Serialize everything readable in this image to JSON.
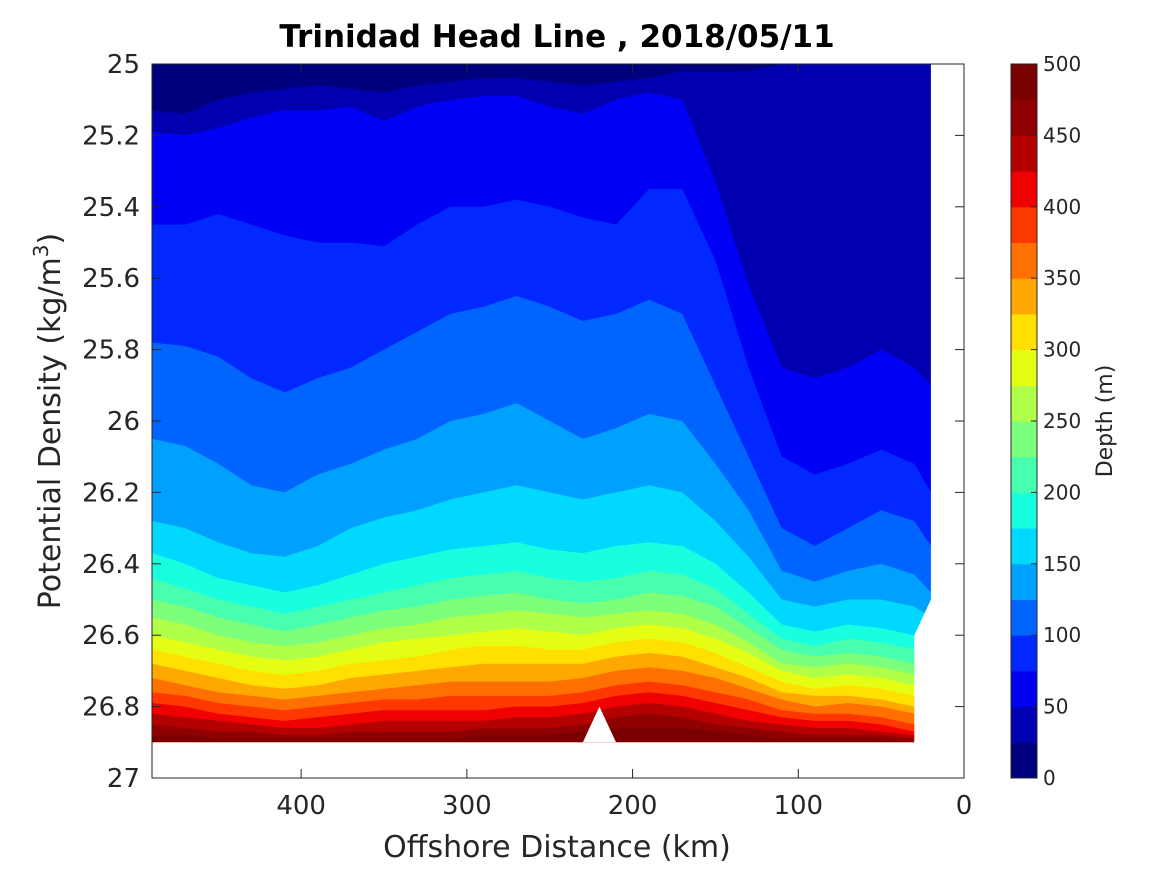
{
  "chart_data": {
    "type": "contourf",
    "title": "Trinidad Head Line , 2018/05/11",
    "xlabel": "Offshore Distance (km)",
    "ylabel_main": "Potential Density (kg/m",
    "ylabel_sup": "3",
    "ylabel_close": ")",
    "colorbar_label": "Depth (m)",
    "xlim": [
      490,
      0
    ],
    "ylim": [
      25,
      27
    ],
    "y_reversed": true,
    "x_reversed": true,
    "xticks": [
      400,
      300,
      200,
      100,
      0
    ],
    "xtick_labels": [
      "400",
      "300",
      "200",
      "100",
      "0"
    ],
    "yticks": [
      25,
      25.2,
      25.4,
      25.6,
      25.8,
      26,
      26.2,
      26.4,
      26.6,
      26.8,
      27
    ],
    "ytick_labels": [
      "25",
      "25.2",
      "25.4",
      "25.6",
      "25.8",
      "26",
      "26.2",
      "26.4",
      "26.6",
      "26.8",
      "27"
    ],
    "colorbar_range": [
      0,
      500
    ],
    "colorbar_ticks": [
      0,
      50,
      100,
      150,
      200,
      250,
      300,
      350,
      400,
      450,
      500
    ],
    "colorbar_tick_labels": [
      "0",
      "50",
      "100",
      "150",
      "200",
      "250",
      "300",
      "350",
      "400",
      "450",
      "500"
    ],
    "colormap": "jet",
    "contour_interval": 25,
    "colormap_colors": [
      "#00007f",
      "#0000b0",
      "#0000f5",
      "#0028ff",
      "#0064ff",
      "#00a0ff",
      "#00d8ff",
      "#18ffe0",
      "#48ffaf",
      "#7cff7a",
      "#b0ff48",
      "#e4ff14",
      "#ffe000",
      "#ffa800",
      "#ff7000",
      "#ff3800",
      "#f00000",
      "#b50000",
      "#8f0000",
      "#7a0000"
    ],
    "x_stations": [
      490,
      470,
      450,
      430,
      410,
      390,
      370,
      350,
      330,
      310,
      290,
      270,
      250,
      230,
      210,
      190,
      170,
      150,
      130,
      110,
      90,
      70,
      50,
      30,
      20
    ],
    "isopycnal_depth_contours": [
      {
        "depth": 25,
        "y": [
          25.13,
          25.14,
          25.1,
          25.08,
          25.07,
          25.06,
          25.07,
          25.08,
          25.06,
          25.05,
          25.04,
          25.04,
          25.05,
          25.06,
          25.05,
          25.04,
          25.02,
          25.02,
          25.02,
          25.0,
          25.0,
          25.0,
          25.0,
          25.0,
          25.0
        ]
      },
      {
        "depth": 50,
        "y": [
          25.19,
          25.2,
          25.18,
          25.15,
          25.13,
          25.13,
          25.12,
          25.16,
          25.12,
          25.1,
          25.09,
          25.09,
          25.12,
          25.14,
          25.1,
          25.08,
          25.1,
          25.33,
          25.62,
          25.85,
          25.88,
          25.85,
          25.8,
          25.85,
          25.9
        ]
      },
      {
        "depth": 75,
        "y": [
          25.45,
          25.45,
          25.42,
          25.45,
          25.48,
          25.5,
          25.5,
          25.51,
          25.45,
          25.4,
          25.4,
          25.38,
          25.4,
          25.43,
          25.45,
          25.35,
          25.35,
          25.55,
          25.85,
          26.1,
          26.15,
          26.12,
          26.08,
          26.12,
          26.2
        ]
      },
      {
        "depth": 100,
        "y": [
          25.78,
          25.79,
          25.82,
          25.88,
          25.92,
          25.88,
          25.85,
          25.8,
          25.75,
          25.7,
          25.68,
          25.65,
          25.68,
          25.72,
          25.7,
          25.66,
          25.7,
          25.9,
          26.1,
          26.3,
          26.35,
          26.3,
          26.25,
          26.28,
          26.35
        ]
      },
      {
        "depth": 125,
        "y": [
          26.05,
          26.07,
          26.12,
          26.18,
          26.2,
          26.15,
          26.12,
          26.08,
          26.05,
          26.0,
          25.98,
          25.95,
          26.0,
          26.05,
          26.02,
          25.98,
          26.0,
          26.12,
          26.25,
          26.42,
          26.45,
          26.42,
          26.4,
          26.43,
          26.48
        ]
      },
      {
        "depth": 150,
        "y": [
          26.28,
          26.3,
          26.34,
          26.37,
          26.38,
          26.35,
          26.3,
          26.27,
          26.25,
          26.22,
          26.2,
          26.18,
          26.2,
          26.22,
          26.2,
          26.18,
          26.2,
          26.28,
          26.38,
          26.5,
          26.52,
          26.5,
          26.5,
          26.52,
          26.55
        ]
      },
      {
        "depth": 175,
        "y": [
          26.37,
          26.4,
          26.44,
          26.46,
          26.48,
          26.46,
          26.43,
          26.4,
          26.38,
          26.36,
          26.35,
          26.34,
          26.36,
          26.37,
          26.35,
          26.34,
          26.35,
          26.4,
          26.48,
          26.57,
          26.59,
          26.57,
          26.58,
          26.6,
          26.62
        ]
      },
      {
        "depth": 200,
        "y": [
          26.44,
          26.47,
          26.5,
          26.52,
          26.54,
          26.52,
          26.5,
          26.48,
          26.46,
          26.44,
          26.43,
          26.42,
          26.44,
          26.45,
          26.44,
          26.42,
          26.43,
          26.47,
          26.54,
          26.61,
          26.63,
          26.61,
          26.62,
          26.64,
          26.66
        ]
      },
      {
        "depth": 225,
        "y": [
          26.5,
          26.52,
          26.55,
          26.57,
          26.59,
          26.57,
          26.55,
          26.53,
          26.52,
          26.5,
          26.49,
          26.48,
          26.5,
          26.51,
          26.5,
          26.48,
          26.49,
          26.52,
          26.58,
          26.64,
          26.66,
          26.65,
          26.66,
          26.68,
          26.7
        ]
      },
      {
        "depth": 250,
        "y": [
          26.55,
          26.57,
          26.6,
          26.62,
          26.63,
          26.62,
          26.6,
          26.58,
          26.57,
          26.55,
          26.54,
          26.53,
          26.54,
          26.55,
          26.54,
          26.53,
          26.54,
          26.57,
          26.62,
          26.68,
          26.69,
          26.68,
          26.69,
          26.71,
          26.73
        ]
      },
      {
        "depth": 275,
        "y": [
          26.6,
          26.62,
          26.64,
          26.66,
          26.67,
          26.66,
          26.64,
          26.62,
          26.61,
          26.6,
          26.59,
          26.58,
          26.59,
          26.6,
          26.58,
          26.57,
          26.58,
          26.61,
          26.65,
          26.7,
          26.72,
          26.71,
          26.72,
          26.74,
          26.76
        ]
      },
      {
        "depth": 300,
        "y": [
          26.64,
          26.66,
          26.68,
          26.7,
          26.71,
          26.7,
          26.68,
          26.67,
          26.66,
          26.64,
          26.63,
          26.63,
          26.64,
          26.64,
          26.62,
          26.61,
          26.62,
          26.65,
          26.69,
          26.73,
          26.75,
          26.74,
          26.75,
          26.77,
          26.79
        ]
      },
      {
        "depth": 325,
        "y": [
          26.68,
          26.7,
          26.72,
          26.74,
          26.75,
          26.74,
          26.72,
          26.71,
          26.7,
          26.69,
          26.68,
          26.68,
          26.68,
          26.68,
          26.66,
          26.65,
          26.66,
          26.69,
          26.72,
          26.76,
          26.77,
          26.77,
          26.78,
          26.8,
          26.82
        ]
      },
      {
        "depth": 350,
        "y": [
          26.72,
          26.74,
          26.76,
          26.77,
          26.78,
          26.77,
          26.76,
          26.75,
          26.74,
          26.73,
          26.73,
          26.73,
          26.73,
          26.72,
          26.7,
          26.69,
          26.7,
          26.72,
          26.75,
          26.78,
          26.8,
          26.79,
          26.8,
          26.82,
          26.84
        ]
      },
      {
        "depth": 375,
        "y": [
          26.76,
          26.77,
          26.79,
          26.8,
          26.81,
          26.8,
          26.79,
          26.78,
          26.78,
          26.77,
          26.77,
          26.77,
          26.77,
          26.76,
          26.74,
          26.73,
          26.74,
          26.76,
          26.78,
          26.81,
          26.82,
          26.82,
          26.83,
          26.85,
          26.86
        ]
      },
      {
        "depth": 400,
        "y": [
          26.79,
          26.8,
          26.82,
          26.83,
          26.84,
          26.83,
          26.82,
          26.81,
          26.81,
          26.81,
          26.81,
          26.8,
          26.8,
          26.79,
          26.77,
          26.76,
          26.77,
          26.79,
          26.81,
          26.83,
          26.84,
          26.84,
          26.85,
          26.87,
          26.88
        ]
      },
      {
        "depth": 425,
        "y": [
          26.82,
          26.83,
          26.84,
          26.85,
          26.86,
          26.86,
          26.85,
          26.84,
          26.84,
          26.84,
          26.84,
          26.83,
          26.83,
          26.82,
          26.8,
          26.79,
          26.8,
          26.82,
          26.84,
          26.85,
          26.86,
          26.86,
          26.87,
          26.88,
          26.89
        ]
      },
      {
        "depth": 450,
        "y": [
          26.85,
          26.86,
          26.87,
          26.87,
          26.88,
          26.88,
          26.87,
          26.87,
          26.87,
          26.87,
          26.86,
          26.86,
          26.86,
          26.85,
          26.83,
          26.82,
          26.83,
          26.85,
          26.86,
          26.87,
          26.88,
          26.88,
          26.88,
          26.89,
          26.9
        ]
      },
      {
        "depth": 475,
        "y": [
          26.88,
          26.88,
          26.89,
          26.89,
          26.89,
          26.89,
          26.89,
          26.89,
          26.89,
          26.89,
          26.88,
          26.88,
          26.88,
          26.87,
          26.86,
          26.86,
          26.86,
          26.87,
          26.88,
          26.89,
          26.89,
          26.89,
          26.89,
          26.9,
          26.9
        ]
      }
    ],
    "data_bottom_density": 26.9,
    "data_top_density": 25.0,
    "nan_regions": [
      {
        "desc": "notch at bottom",
        "points": [
          [
            230,
            26.9
          ],
          [
            220,
            26.8
          ],
          [
            210,
            26.9
          ]
        ]
      },
      {
        "desc": "inshore missing",
        "points": [
          [
            20,
            25.0
          ],
          [
            0,
            25.0
          ],
          [
            0,
            27.0
          ],
          [
            30,
            27.0
          ],
          [
            30,
            26.6
          ],
          [
            20,
            26.5
          ]
        ]
      }
    ]
  }
}
